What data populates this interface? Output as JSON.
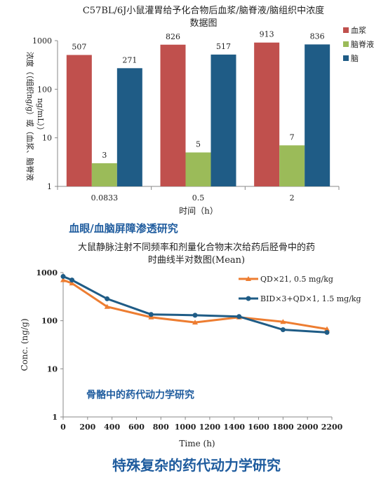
{
  "chart_data": [
    {
      "type": "bar",
      "title_line1": "C57BL/6J小鼠灌胃给予化合物后血浆/脑脊液/脑组织中浓度",
      "title_line2": "数据图",
      "xlabel": "时间（h）",
      "ylabel_line1": "浓度（（组织ng/g）或（血浆、脑脊液",
      "ylabel_line2": "ng/mL））",
      "scale": "log",
      "ylim": [
        1,
        1000
      ],
      "yticks": [
        "1",
        "10",
        "100",
        "1000"
      ],
      "grid": false,
      "legend_position": "top-right",
      "categories": [
        "0.0833",
        "0.5",
        "2"
      ],
      "series": [
        {
          "name": "血浆",
          "color": "#c0504d",
          "values": [
            507,
            826,
            913
          ]
        },
        {
          "name": "脑脊液",
          "color": "#9bbb59",
          "values": [
            3,
            5,
            7
          ]
        },
        {
          "name": "脑",
          "color": "#1f5c86",
          "values": [
            271,
            517,
            836
          ]
        }
      ],
      "caption": "血眼/血脑屏障渗透研究"
    },
    {
      "type": "line",
      "title_line1": "大鼠静脉注射不同频率和剂量化合物末次给药后胫骨中的药",
      "title_line2": "时曲线半对数图(Mean)",
      "xlabel": "Time (h)",
      "ylabel": "Conc. (ng/g)",
      "scale": "log",
      "ylim": [
        1,
        1000
      ],
      "xlim": [
        0,
        2200
      ],
      "yticks": [
        "1",
        "10",
        "100",
        "1000"
      ],
      "xticks": [
        "0",
        "200",
        "400",
        "600",
        "800",
        "1000",
        "1200",
        "1400",
        "1600",
        "1800",
        "2000",
        "2200"
      ],
      "grid": false,
      "legend_position": "top-right",
      "series": [
        {
          "name": "QD×21, 0.5 mg/kg",
          "color": "#ed7d31",
          "marker": "triangle",
          "x": [
            0,
            72,
            360,
            720,
            1080,
            1440,
            1800,
            2160
          ],
          "y": [
            700,
            600,
            195,
            118,
            92,
            118,
            95,
            67
          ]
        },
        {
          "name": "BID×3+QD×1, 1.5 mg/kg",
          "color": "#1f5c86",
          "marker": "circle",
          "x": [
            0,
            72,
            360,
            720,
            1080,
            1440,
            1800,
            2160
          ],
          "y": [
            830,
            700,
            285,
            135,
            130,
            122,
            65,
            57
          ]
        }
      ],
      "caption": "骨骼中的药代动力学研究"
    }
  ],
  "footer": "特殊复杂的药代动力学研究"
}
